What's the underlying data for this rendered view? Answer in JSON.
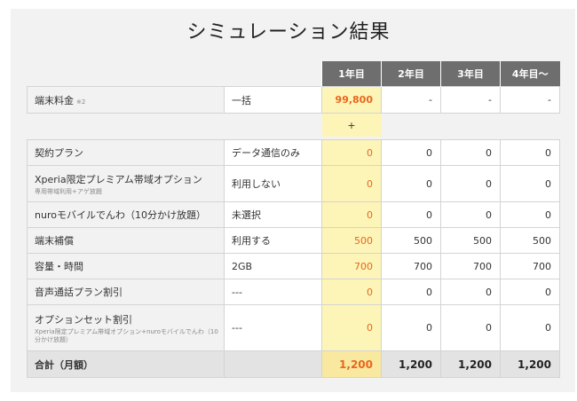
{
  "title": "シミュレーション結果",
  "colors": {
    "header_bg": "#6e6e6e",
    "year1_bg": "#fdf4b8",
    "year1_text": "#e8671c",
    "panel_bg": "#f2f2f2"
  },
  "header": {
    "years": [
      "1年目",
      "2年目",
      "3年目",
      "4年目〜"
    ]
  },
  "device": {
    "label": "端末料金",
    "mark": "※2",
    "sub": "一括",
    "values": [
      "99,800",
      "-",
      "-",
      "-"
    ]
  },
  "plus": "+",
  "rows": [
    {
      "label": "契約プラン",
      "note": "",
      "sub": "データ通信のみ",
      "values": [
        "0",
        "0",
        "0",
        "0"
      ]
    },
    {
      "label": "Xperia限定プレミアム帯域オプション",
      "note": "専用帯域利用+アゲ放題",
      "sub": "利用しない",
      "values": [
        "0",
        "0",
        "0",
        "0"
      ]
    },
    {
      "label": "nuroモバイルでんわ（10分かけ放題）",
      "note": "",
      "sub": "未選択",
      "values": [
        "0",
        "0",
        "0",
        "0"
      ]
    },
    {
      "label": "端末補償",
      "note": "",
      "sub": "利用する",
      "values": [
        "500",
        "500",
        "500",
        "500"
      ]
    },
    {
      "label": "容量・時間",
      "note": "",
      "sub": "2GB",
      "values": [
        "700",
        "700",
        "700",
        "700"
      ]
    },
    {
      "label": "音声通話プラン割引",
      "note": "",
      "sub": "---",
      "values": [
        "0",
        "0",
        "0",
        "0"
      ]
    },
    {
      "label": "オプションセット割引",
      "note": "Xperia限定プレミアム帯域オプション+nuroモバイルでんわ（10分かけ放題）",
      "sub": "---",
      "values": [
        "0",
        "0",
        "0",
        "0"
      ]
    }
  ],
  "total": {
    "label": "合計（月額）",
    "values": [
      "1,200",
      "1,200",
      "1,200",
      "1,200"
    ]
  }
}
